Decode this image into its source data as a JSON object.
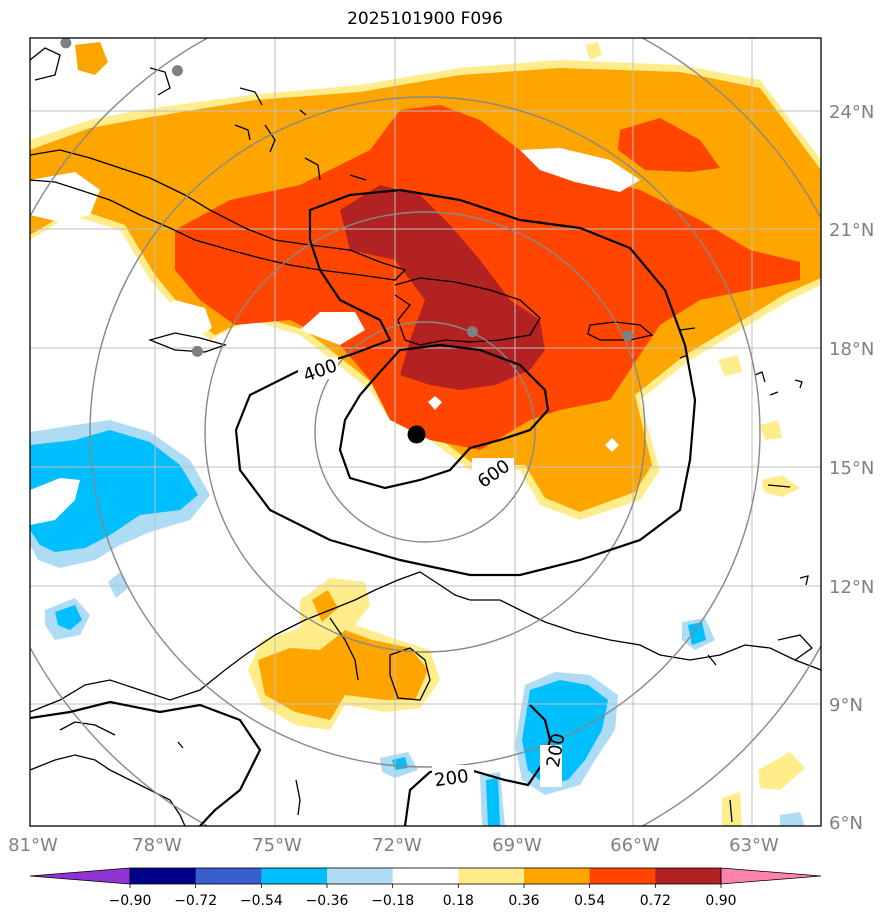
{
  "title": "2025101900 F096",
  "lon_labels": [
    "81°W",
    "78°W",
    "75°W",
    "72°W",
    "69°W",
    "66°W",
    "63°W"
  ],
  "lat_labels": [
    "24°N",
    "21°N",
    "18°N",
    "15°N",
    "12°N",
    "9°N",
    "6°N"
  ],
  "contour_labels": [
    "400",
    "600",
    "200",
    "200"
  ],
  "colorbar": {
    "ticks": [
      "−0.90",
      "−0.72",
      "−0.54",
      "−0.36",
      "−0.18",
      "0.18",
      "0.36",
      "0.54",
      "0.72",
      "0.90"
    ],
    "colors": [
      "#8f35d4",
      "#00008b",
      "#3a5fcd",
      "#00bfff",
      "#aedcf5",
      "#ffffff",
      "#ffec8b",
      "#ffa500",
      "#ff4500",
      "#b22222",
      "#ff82ab"
    ]
  },
  "storm_center": {
    "lon": -71.3,
    "lat": 15.9
  },
  "station_markers": [
    {
      "lon": -80.1,
      "lat": 25.8
    },
    {
      "lon": -77.3,
      "lat": 25.1
    },
    {
      "lon": -76.8,
      "lat": 18.0
    },
    {
      "lon": -69.9,
      "lat": 18.5
    },
    {
      "lon": -66.0,
      "lat": 18.4
    }
  ]
}
